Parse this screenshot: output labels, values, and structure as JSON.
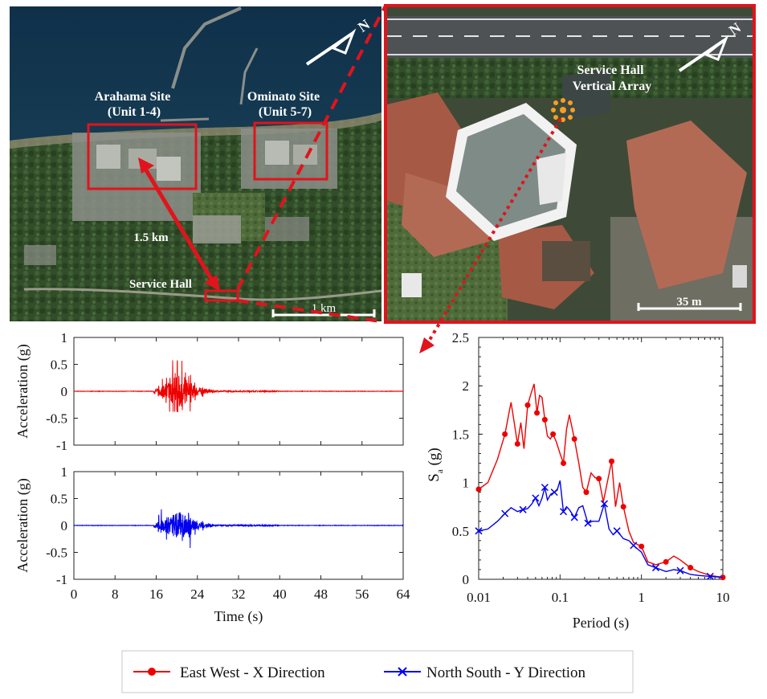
{
  "map": {
    "site1_label": [
      "Arahama Site",
      "(Unit 1-4)"
    ],
    "site2_label": [
      "Ominato Site",
      "(Unit 5-7)"
    ],
    "distance_label": "1.5 km",
    "service_hall_label": "Service Hall",
    "scale_label": "1 km",
    "north_label": "N"
  },
  "inset": {
    "array_label": [
      "Service Hall",
      "Vertical Array"
    ],
    "scale_label": "35 m",
    "north_label": "N"
  },
  "colors": {
    "ew": "#ee0000",
    "ns": "#0000ee",
    "highlight": "#e0141c",
    "marker": "#f5a020"
  },
  "chart_data": [
    {
      "type": "line",
      "name": "ew-time-history",
      "xlabel": "",
      "ylabel": "Acceleration (g)",
      "xlim": [
        0,
        64
      ],
      "ylim": [
        -1,
        1
      ],
      "xticks": [
        "0",
        "8",
        "16",
        "24",
        "32",
        "40",
        "48",
        "56",
        "64"
      ],
      "yticks": [
        "1",
        "0.5",
        "0",
        "-0.5",
        "-1"
      ],
      "events": [
        {
          "t": 16.5,
          "a": 0.12
        },
        {
          "t": 17.2,
          "a": 0.18
        },
        {
          "t": 18.0,
          "a": 0.32
        },
        {
          "t": 18.6,
          "a": -0.3
        },
        {
          "t": 19.2,
          "a": 0.42
        },
        {
          "t": 19.6,
          "a": -0.38
        },
        {
          "t": 20.1,
          "a": 0.75
        },
        {
          "t": 20.5,
          "a": -0.3
        },
        {
          "t": 21.0,
          "a": 0.4
        },
        {
          "t": 21.6,
          "a": -0.28
        },
        {
          "t": 22.3,
          "a": 0.25
        },
        {
          "t": 22.6,
          "a": -0.38
        },
        {
          "t": 23.5,
          "a": 0.2
        },
        {
          "t": 25.0,
          "a": 0.1
        }
      ],
      "peak": 0.75,
      "trough": -0.38
    },
    {
      "type": "line",
      "name": "ns-time-history",
      "xlabel": "Time (s)",
      "ylabel": "Acceleration (g)",
      "xlim": [
        0,
        64
      ],
      "ylim": [
        -1,
        1
      ],
      "xticks": [
        "0",
        "8",
        "16",
        "24",
        "32",
        "40",
        "48",
        "56",
        "64"
      ],
      "yticks": [
        "1",
        "0.5",
        "0",
        "-0.5",
        "-1"
      ],
      "events": [
        {
          "t": 16.5,
          "a": 0.2
        },
        {
          "t": 17.0,
          "a": 0.22
        },
        {
          "t": 18.0,
          "a": -0.18
        },
        {
          "t": 19.0,
          "a": 0.2
        },
        {
          "t": 20.0,
          "a": 0.16
        },
        {
          "t": 21.0,
          "a": 0.25
        },
        {
          "t": 21.8,
          "a": -0.2
        },
        {
          "t": 22.3,
          "a": 0.3
        },
        {
          "t": 22.6,
          "a": -0.42
        },
        {
          "t": 23.5,
          "a": 0.12
        },
        {
          "t": 25.0,
          "a": 0.08
        }
      ],
      "peak": 0.3,
      "trough": -0.42
    },
    {
      "type": "line",
      "name": "response-spectrum",
      "xlabel": "Period (s)",
      "ylabel": "S",
      "ylabel_sub": "a",
      "ylabel_unit": "(g)",
      "xscale": "log",
      "xlim": [
        0.01,
        10
      ],
      "ylim": [
        0,
        2.5
      ],
      "xticks": [
        "0.01",
        "0.1",
        "1",
        "10"
      ],
      "yticks": [
        "0",
        "0.5",
        "1",
        "1.5",
        "2",
        "2.5"
      ],
      "series": [
        {
          "name": "East West - X Direction",
          "marker": "circle",
          "x": [
            0.01,
            0.013,
            0.017,
            0.021,
            0.025,
            0.027,
            0.03,
            0.033,
            0.036,
            0.04,
            0.044,
            0.048,
            0.052,
            0.056,
            0.06,
            0.065,
            0.07,
            0.076,
            0.082,
            0.09,
            0.1,
            0.11,
            0.12,
            0.13,
            0.15,
            0.17,
            0.19,
            0.21,
            0.24,
            0.27,
            0.3,
            0.34,
            0.38,
            0.43,
            0.48,
            0.54,
            0.6,
            0.7,
            0.8,
            1.0,
            1.2,
            1.5,
            2.0,
            2.5,
            3.0,
            4.0,
            5.0,
            7.0,
            10.0
          ],
          "y": [
            0.93,
            1.0,
            1.24,
            1.5,
            1.83,
            1.65,
            1.4,
            1.62,
            1.35,
            1.8,
            1.92,
            2.02,
            1.72,
            1.9,
            1.88,
            1.65,
            1.48,
            1.45,
            1.5,
            1.42,
            1.3,
            1.2,
            1.55,
            1.7,
            1.45,
            1.2,
            0.95,
            0.9,
            1.1,
            1.05,
            1.04,
            0.8,
            1.0,
            1.22,
            0.75,
            1.0,
            0.75,
            0.5,
            0.38,
            0.34,
            0.18,
            0.15,
            0.18,
            0.24,
            0.2,
            0.12,
            0.08,
            0.04,
            0.02
          ]
        },
        {
          "name": "North South - Y Direction",
          "marker": "x",
          "x": [
            0.01,
            0.013,
            0.017,
            0.021,
            0.025,
            0.03,
            0.035,
            0.04,
            0.045,
            0.05,
            0.055,
            0.06,
            0.065,
            0.07,
            0.077,
            0.085,
            0.092,
            0.1,
            0.11,
            0.12,
            0.13,
            0.15,
            0.17,
            0.19,
            0.22,
            0.25,
            0.3,
            0.35,
            0.4,
            0.45,
            0.5,
            0.6,
            0.7,
            0.8,
            1.0,
            1.2,
            1.5,
            2.0,
            2.5,
            3.0,
            4.0,
            5.0,
            7.0,
            10.0
          ],
          "y": [
            0.5,
            0.52,
            0.6,
            0.68,
            0.74,
            0.7,
            0.72,
            0.73,
            0.78,
            0.84,
            0.76,
            0.84,
            0.95,
            0.82,
            0.88,
            0.9,
            0.92,
            1.02,
            0.7,
            0.75,
            0.72,
            0.64,
            0.74,
            0.76,
            0.58,
            0.6,
            0.6,
            0.78,
            0.52,
            0.46,
            0.5,
            0.42,
            0.4,
            0.35,
            0.28,
            0.15,
            0.12,
            0.08,
            0.1,
            0.09,
            0.05,
            0.04,
            0.03,
            0.02
          ]
        }
      ],
      "legend": "bottom"
    }
  ]
}
